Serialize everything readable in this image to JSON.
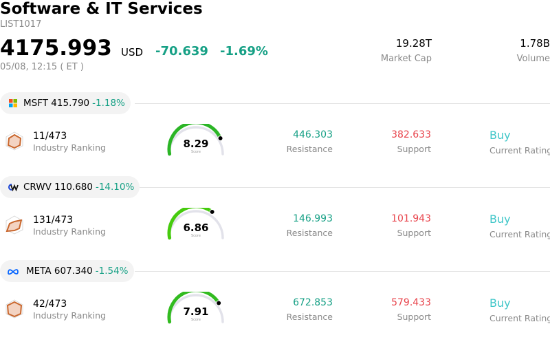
{
  "header": {
    "title": "Software & IT Services",
    "code": "LIST1017",
    "price": "4175.993",
    "currency": "USD",
    "change": "-70.639",
    "change_pct": "-1.69%",
    "time": "05/08, 12:15  ( ET )",
    "market_cap_value": "19.28T",
    "market_cap_label": "Market Cap",
    "volume_value": "1.78B",
    "volume_label": "Volume"
  },
  "stocks": [
    {
      "symbol": "MSFT",
      "price": "415.790",
      "change": "-1.18%",
      "rank": "11/473",
      "rank_label": "Industry Ranking",
      "score": "8.29",
      "score_value": 8.29,
      "score_label": "Score",
      "resistance": "446.303",
      "resistance_label": "Resistance",
      "support": "382.633",
      "support_label": "Support",
      "rating": "Buy",
      "rating_label": "Current Rating",
      "logo_icon": "microsoft-logo-icon"
    },
    {
      "symbol": "CRWV",
      "price": "110.680",
      "change": "-14.10%",
      "rank": "131/473",
      "rank_label": "Industry Ranking",
      "score": "6.86",
      "score_value": 6.86,
      "score_label": "Score",
      "resistance": "146.993",
      "resistance_label": "Resistance",
      "support": "101.943",
      "support_label": "Support",
      "rating": "Buy",
      "rating_label": "Current Rating",
      "logo_icon": "coreweave-logo-icon"
    },
    {
      "symbol": "META",
      "price": "607.340",
      "change": "-1.54%",
      "rank": "42/473",
      "rank_label": "Industry Ranking",
      "score": "7.91",
      "score_value": 7.91,
      "score_label": "Score",
      "resistance": "672.853",
      "resistance_label": "Resistance",
      "support": "579.433",
      "support_label": "Support",
      "rating": "Buy",
      "rating_label": "Current Rating",
      "logo_icon": "meta-logo-icon"
    }
  ],
  "colors": {
    "positive": "#16a085",
    "negative": "#e8434b",
    "rating": "#3ec6c8",
    "gauge_track": "#e2e2ea"
  }
}
